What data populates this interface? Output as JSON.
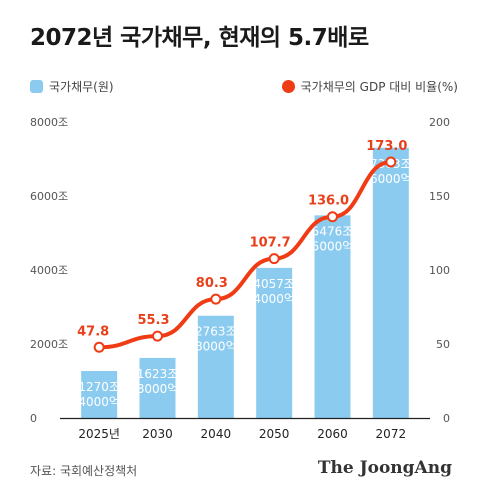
{
  "title": "2072년 국가채무, 현재의 5.7배로",
  "legend": {
    "bar_label": "국가채무(원)",
    "line_label": "국가채무의 GDP 대비 비율(%)"
  },
  "colors": {
    "bar": "#8ccbf0",
    "line": "#f03c14",
    "line_label": "#e8401a"
  },
  "source": "자료: 국회예산정책처",
  "brand": "The JoongAng",
  "chart_data": {
    "type": "bar",
    "categories": [
      "2025년",
      "2030",
      "2040",
      "2050",
      "2060",
      "2072"
    ],
    "series": [
      {
        "name": "국가채무(원)",
        "type": "bar",
        "axis": "left",
        "values": [
          1270.4,
          1623.8,
          2763.8,
          4057.4,
          5476.5,
          7303.6
        ],
        "labels": [
          [
            "1270조",
            "4000억"
          ],
          [
            "1623조",
            "8000억"
          ],
          [
            "2763조",
            "8000억"
          ],
          [
            "4057조",
            "4000억"
          ],
          [
            "5476조",
            "5000억"
          ],
          [
            "7303조",
            "6000억"
          ]
        ]
      },
      {
        "name": "국가채무의 GDP 대비 비율(%)",
        "type": "line",
        "axis": "right",
        "values": [
          47.8,
          55.3,
          80.3,
          107.7,
          136.0,
          173.0
        ],
        "labels": [
          "47.8",
          "55.3",
          "80.3",
          "107.7",
          "136.0",
          "173.0"
        ]
      }
    ],
    "y_left": {
      "ylim": [
        0,
        8000
      ],
      "ticks": [
        0,
        2000,
        4000,
        6000,
        8000
      ],
      "tick_labels": [
        "0",
        "2000조",
        "4000조",
        "6000조",
        "8000조"
      ]
    },
    "y_right": {
      "ylim": [
        0,
        200
      ],
      "ticks": [
        0,
        50,
        100,
        150,
        200
      ],
      "tick_labels": [
        "0",
        "50",
        "100",
        "150",
        "200"
      ]
    },
    "grid": false,
    "legend_position": "top"
  }
}
